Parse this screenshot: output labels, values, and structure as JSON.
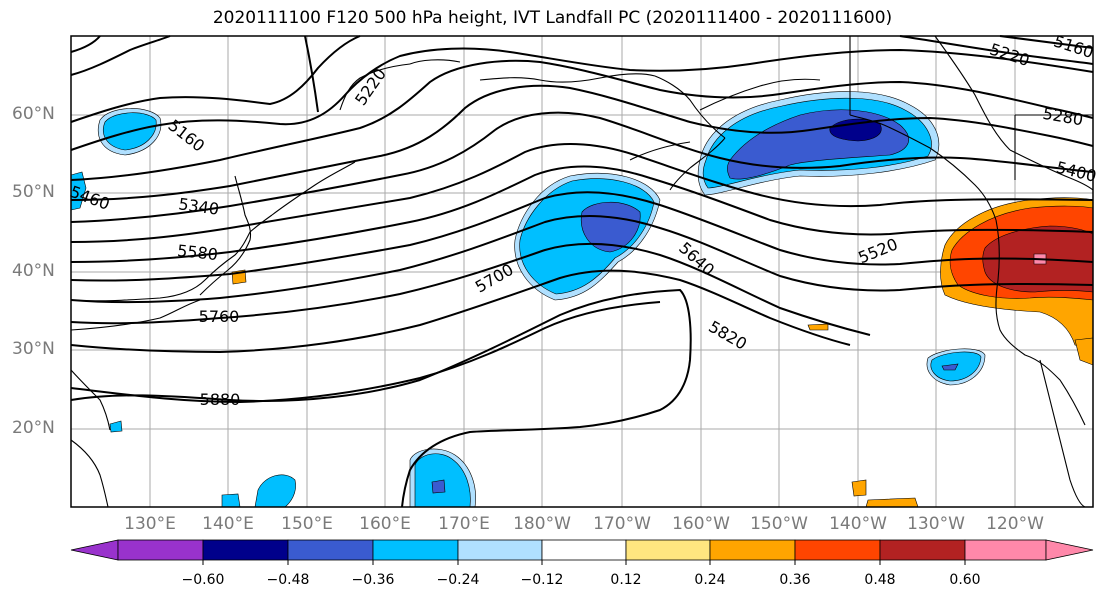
{
  "title": "2020111100 F120 500 hPa height, IVT Landfall PC (2020111400 - 2020111600)",
  "lat_labels": [
    "60°N",
    "50°N",
    "40°N",
    "30°N",
    "20°N"
  ],
  "lon_labels": [
    "130°E",
    "140°E",
    "150°E",
    "160°E",
    "170°E",
    "180°W",
    "170°W",
    "160°W",
    "150°W",
    "140°W",
    "130°W",
    "120°W"
  ],
  "contour_labels": [
    "5220",
    "5160",
    "5460",
    "5340",
    "5580",
    "5760",
    "5880",
    "5700",
    "5640",
    "5820",
    "5520",
    "5400",
    "5280",
    "5220",
    "5160"
  ],
  "colorbar": {
    "ticks": [
      "−0.60",
      "−0.48",
      "−0.36",
      "−0.24",
      "−0.12",
      "0.12",
      "0.24",
      "0.36",
      "0.48",
      "0.60"
    ],
    "colors": [
      "#9932cc",
      "#00008b",
      "#3a5bd0",
      "#00bfff",
      "#b0e0ff",
      "#ffffff",
      "#ffe680",
      "#ffa500",
      "#ff4500",
      "#b22222",
      "#ff88aa"
    ]
  },
  "colors": {
    "frame": "#000000",
    "grid": "#aaaaaa",
    "contour": "#000000",
    "coast": "#000000"
  }
}
